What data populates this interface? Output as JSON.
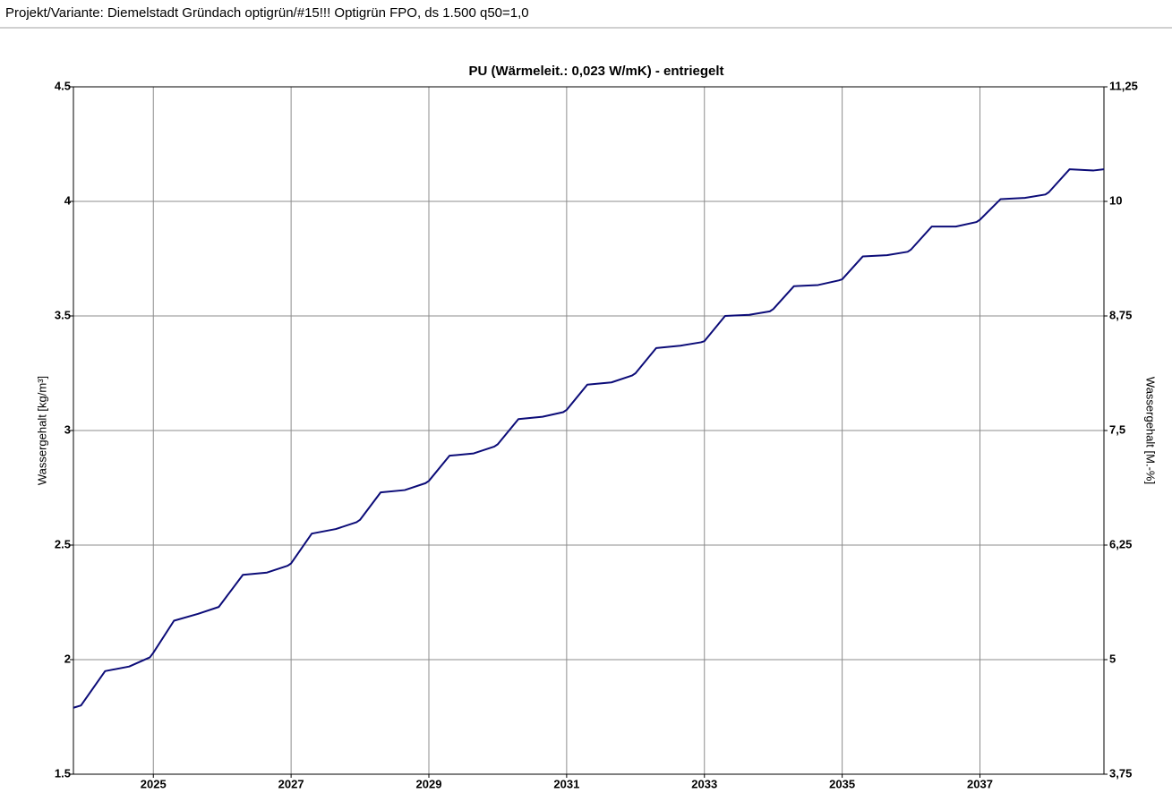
{
  "header": "Projekt/Variante:  Diemelstadt Gründach optigrün/#15!!!  Optigrün FPO, ds 1.500 q50=1,0",
  "chart_data": {
    "type": "line",
    "title": "PU (Wärmeleit.: 0,023 W/mK) - entriegelt",
    "ylabel": "Wassergehalt [kg/m³]",
    "y2label": "Wassergehalt [M.-%]",
    "x": [
      2023.84,
      2023.95,
      2024.3,
      2024.65,
      2024.95,
      2025.0,
      2025.3,
      2025.65,
      2025.95,
      2026.0,
      2026.3,
      2026.65,
      2026.95,
      2027.0,
      2027.3,
      2027.65,
      2027.95,
      2028.0,
      2028.3,
      2028.65,
      2028.95,
      2029.0,
      2029.3,
      2029.65,
      2029.95,
      2030.0,
      2030.3,
      2030.65,
      2030.95,
      2031.0,
      2031.3,
      2031.65,
      2031.95,
      2032.0,
      2032.3,
      2032.65,
      2032.95,
      2033.0,
      2033.3,
      2033.65,
      2033.95,
      2034.0,
      2034.3,
      2034.65,
      2034.95,
      2035.0,
      2035.3,
      2035.65,
      2035.95,
      2036.0,
      2036.3,
      2036.65,
      2036.95,
      2037.0,
      2037.3,
      2037.65,
      2037.95,
      2038.0,
      2038.3,
      2038.65,
      2038.8
    ],
    "values": [
      1.79,
      1.8,
      1.95,
      1.97,
      2.01,
      2.03,
      2.17,
      2.2,
      2.23,
      2.25,
      2.37,
      2.38,
      2.41,
      2.42,
      2.55,
      2.57,
      2.6,
      2.61,
      2.73,
      2.74,
      2.77,
      2.78,
      2.89,
      2.9,
      2.93,
      2.94,
      3.05,
      3.06,
      3.08,
      3.09,
      3.2,
      3.21,
      3.24,
      3.25,
      3.36,
      3.37,
      3.385,
      3.39,
      3.5,
      3.505,
      3.52,
      3.53,
      3.63,
      3.635,
      3.655,
      3.66,
      3.76,
      3.765,
      3.78,
      3.79,
      3.89,
      3.89,
      3.91,
      3.92,
      4.01,
      4.015,
      4.03,
      4.04,
      4.14,
      4.135,
      4.14
    ],
    "color": "#0c0c78",
    "xlim": [
      2023.84,
      2038.8
    ],
    "xticks": [
      2025,
      2027,
      2029,
      2031,
      2033,
      2035,
      2037
    ],
    "ylim": [
      1.5,
      4.5
    ],
    "yticks": [
      1.5,
      2,
      2.5,
      3,
      3.5,
      4,
      4.5
    ],
    "y2lim": [
      3.75,
      11.25
    ],
    "y2ticks": [
      {
        "value": 3.75,
        "label": "3,75"
      },
      5,
      {
        "value": 6.25,
        "label": "6,25"
      },
      {
        "value": 7.5,
        "label": "7,5"
      },
      {
        "value": 8.75,
        "label": "8,75"
      },
      10,
      {
        "value": 11.25,
        "label": "11,25"
      }
    ],
    "grid": true
  }
}
